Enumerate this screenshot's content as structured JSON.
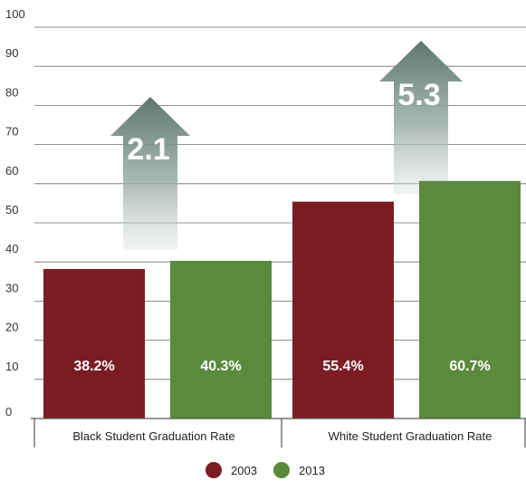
{
  "chart_data": {
    "type": "bar",
    "categories": [
      "Black Student Graduation Rate",
      "White Student Graduation Rate"
    ],
    "series": [
      {
        "name": "2003",
        "values": [
          38.2,
          55.4
        ],
        "labels": [
          "38.2%",
          "55.4%"
        ],
        "color": "#7b1c22"
      },
      {
        "name": "2013",
        "values": [
          40.3,
          60.7
        ],
        "labels": [
          "40.3%",
          "60.7%"
        ],
        "color": "#5a8a3c"
      }
    ],
    "changes": [
      {
        "category": "Black Student Graduation Rate",
        "label": "2.1"
      },
      {
        "category": "White Student Graduation Rate",
        "label": "5.3"
      }
    ],
    "ylim": [
      0,
      100
    ],
    "yticks": [
      0,
      10,
      20,
      30,
      40,
      50,
      60,
      70,
      80,
      90,
      100
    ],
    "grid": true,
    "legend_position": "bottom",
    "title": "",
    "xlabel": "",
    "ylabel": ""
  }
}
